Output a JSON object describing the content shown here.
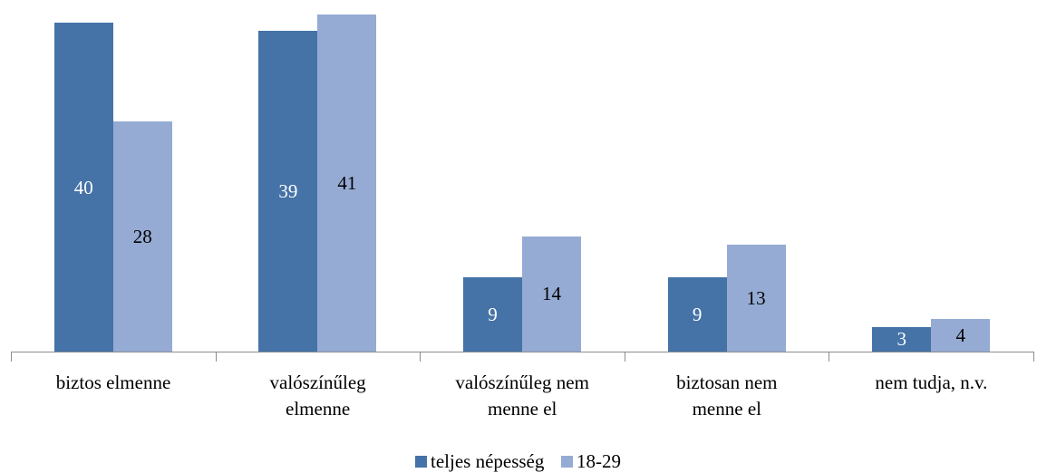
{
  "chart_data": {
    "type": "bar",
    "categories": [
      "biztos elmenne",
      "valószínűleg\nelmenne",
      "valószínűleg nem\nmenne el",
      "biztosan nem\nmenne el",
      "nem tudja, n.v."
    ],
    "series": [
      {
        "name": "teljes népesség",
        "color": "#4573a7",
        "label_color": "#ffffff",
        "values": [
          40,
          39,
          9,
          9,
          3
        ]
      },
      {
        "name": "18-29",
        "color": "#95abd4",
        "label_color": "#000000",
        "values": [
          28,
          41,
          14,
          13,
          4
        ]
      }
    ],
    "legend": "bottom"
  }
}
